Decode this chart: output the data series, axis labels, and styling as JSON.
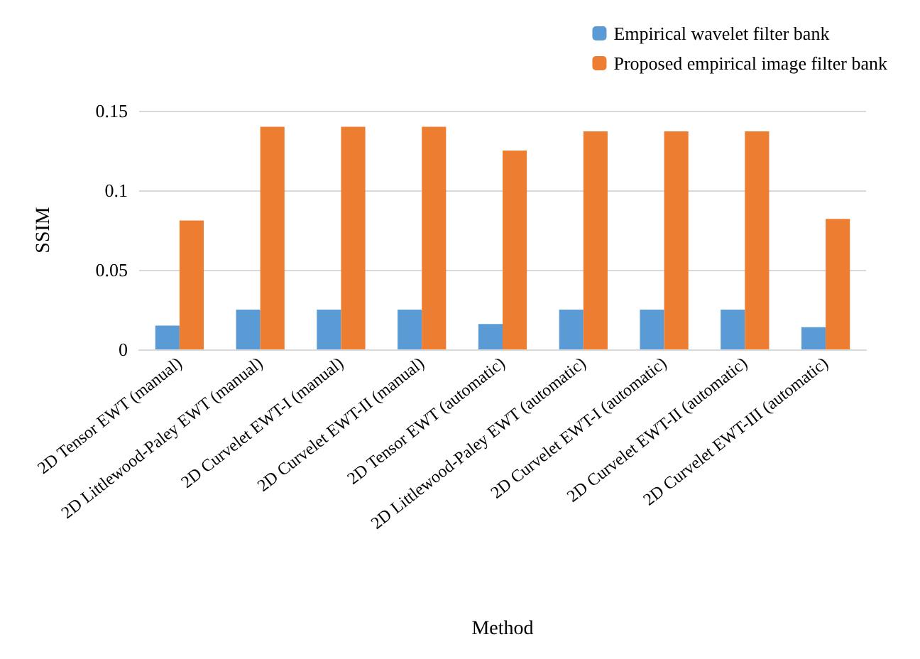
{
  "chart_data": {
    "type": "bar",
    "xlabel": "Method",
    "ylabel": "SSIM",
    "categories": [
      "2D Tensor EWT (manual)",
      "2D Littlewood-Paley EWT (manual)",
      "2D Curvelet EWT-I (manual)",
      "2D Curvelet EWT-II (manual)",
      "2D Tensor EWT (automatic)",
      "2D Littlewood-Paley EWT (automatic)",
      "2D Curvelet EWT-I (automatic)",
      "2D Curvelet EWT-II (automatic)",
      "2D Curvelet EWT-III (automatic)"
    ],
    "series": [
      {
        "name": "Empirical wavelet filter bank",
        "color": "#5b9bd5",
        "values": [
          0.015,
          0.025,
          0.025,
          0.025,
          0.016,
          0.025,
          0.025,
          0.025,
          0.014
        ]
      },
      {
        "name": "Proposed empirical image filter bank",
        "color": "#ed7d31",
        "values": [
          0.081,
          0.14,
          0.14,
          0.14,
          0.125,
          0.137,
          0.137,
          0.137,
          0.082
        ]
      }
    ],
    "ylim": [
      0,
      0.15
    ],
    "yticks": [
      0,
      0.05,
      0.1,
      0.15
    ],
    "grid": "y",
    "legend": "top right"
  }
}
